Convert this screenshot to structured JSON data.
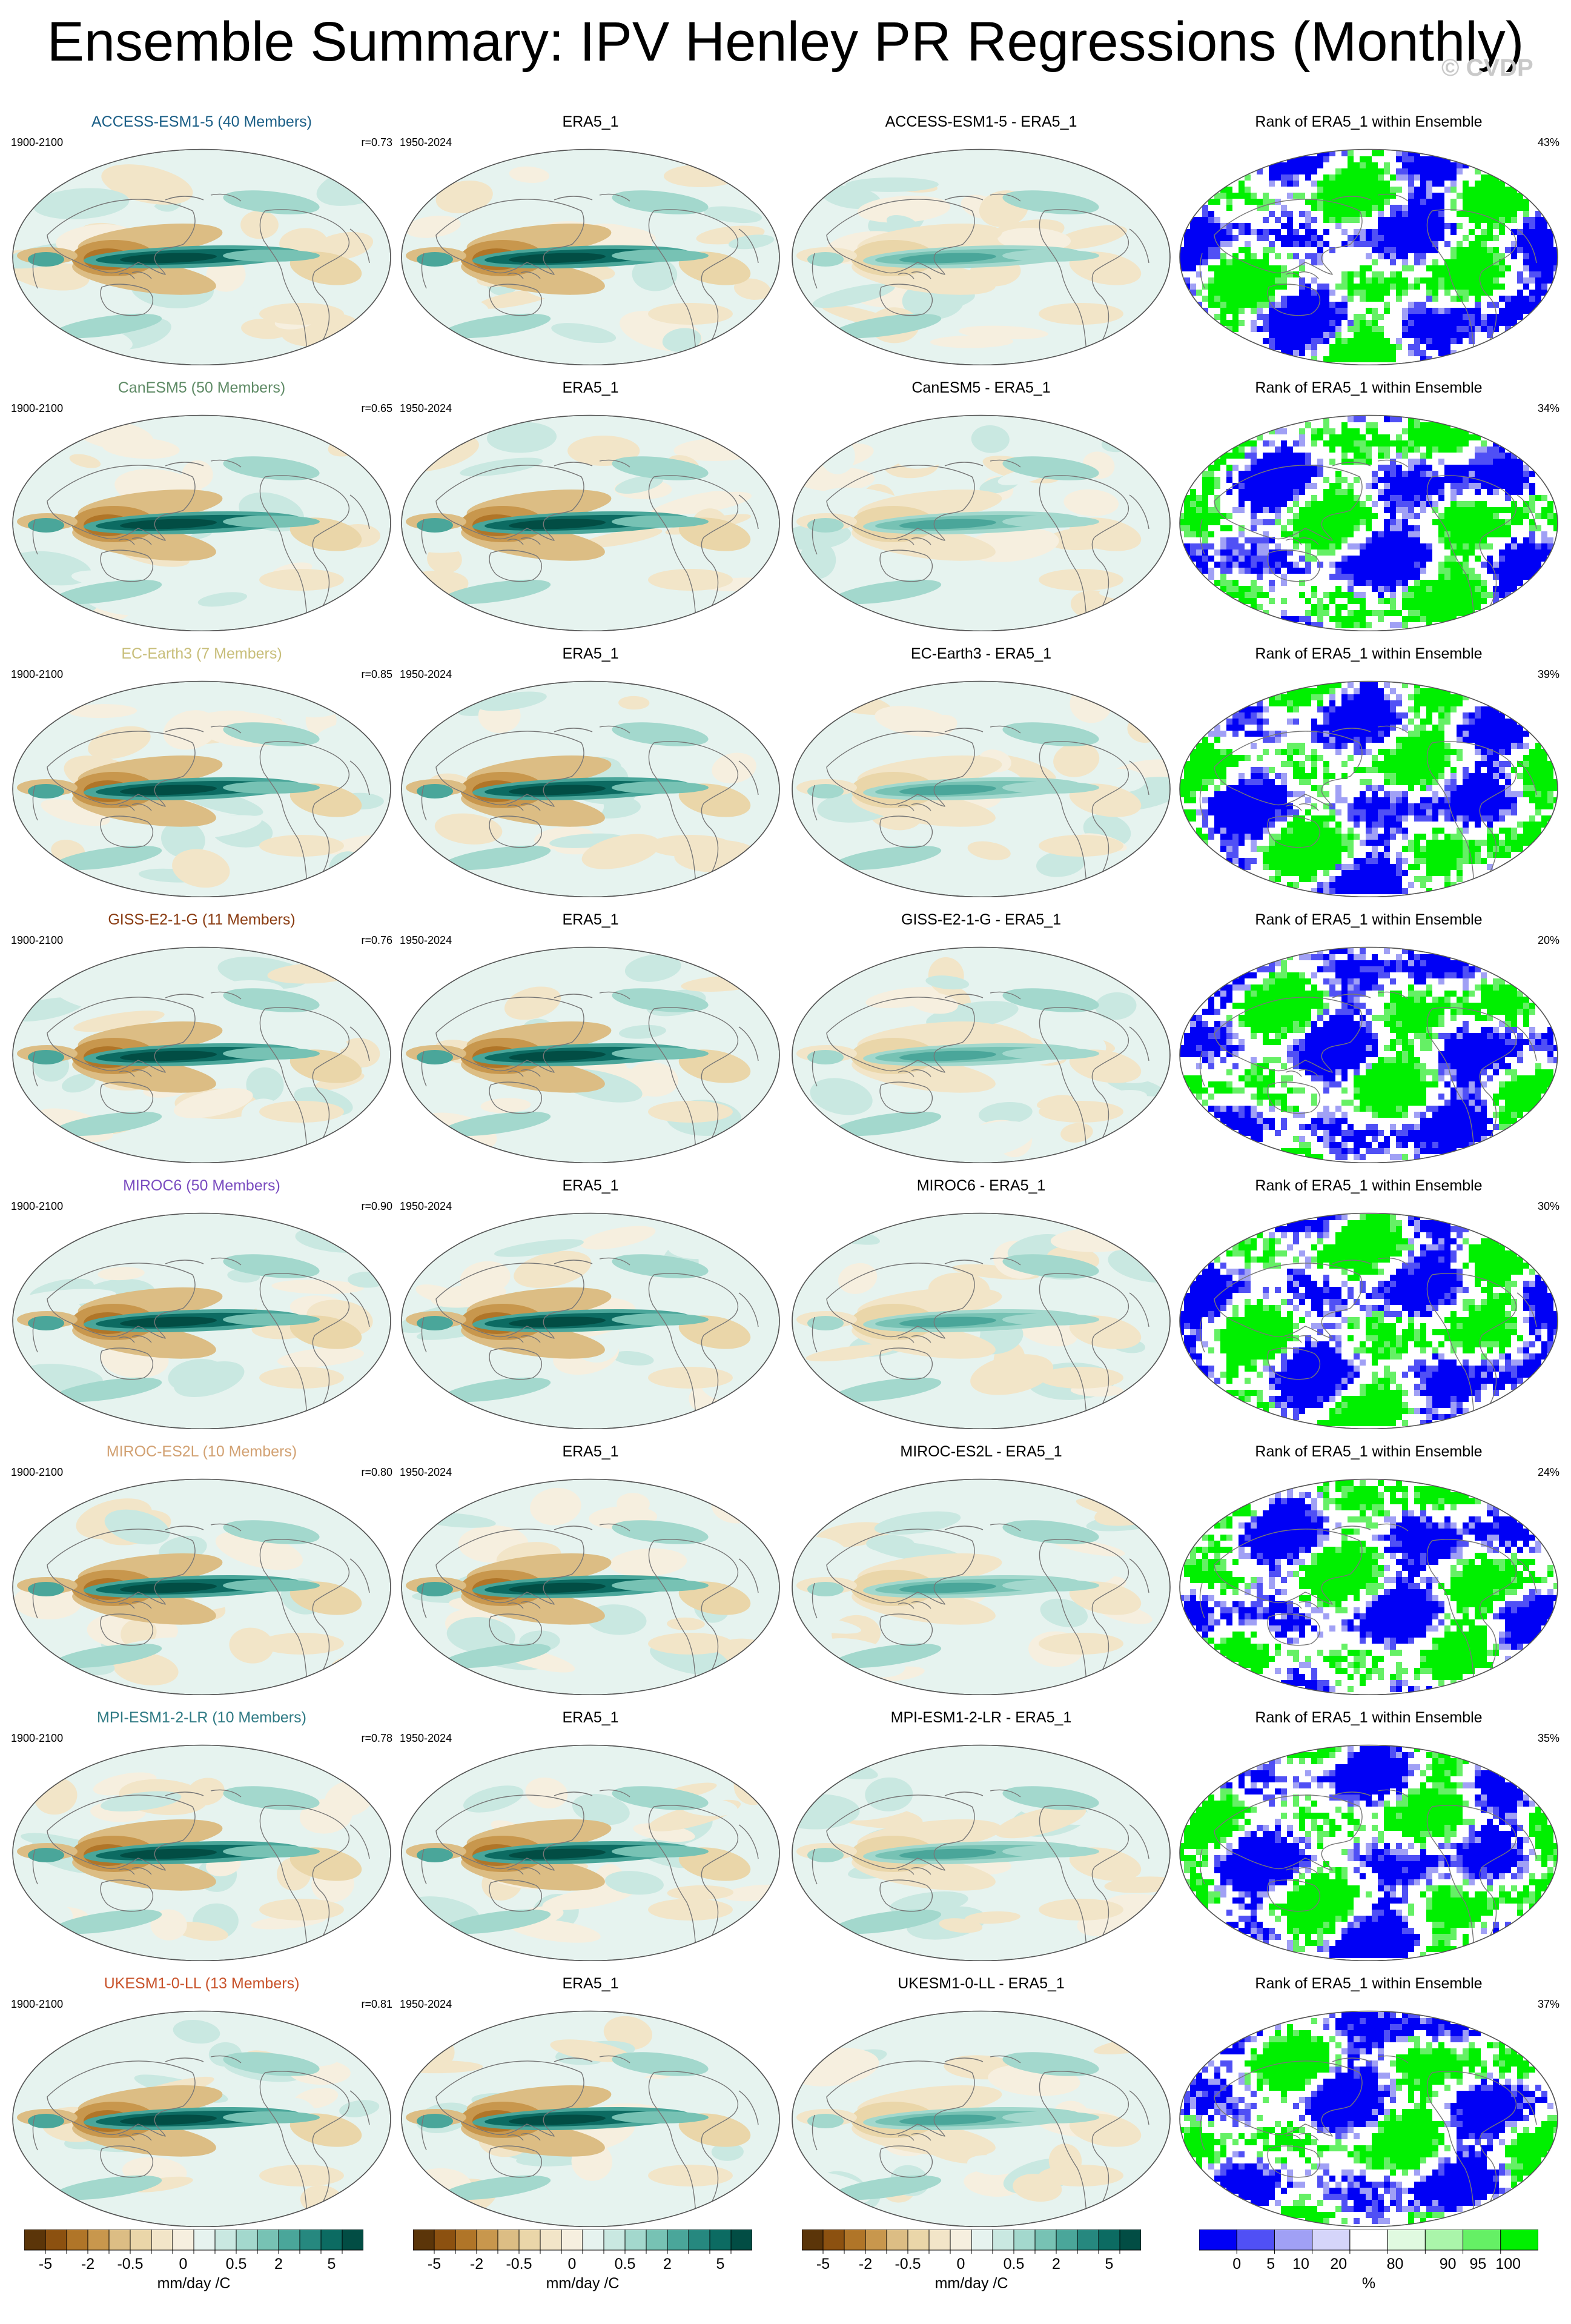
{
  "title": "Ensemble Summary: IPV Henley PR Regressions (Monthly)",
  "watermark": "© CVDP",
  "rank_suffix": "within Ensemble",
  "diverging_colors": [
    "#5b3509",
    "#8c5110",
    "#b07528",
    "#c8974d",
    "#dcbd84",
    "#ead6a9",
    "#f2e5c8",
    "#f6efdf",
    "#e6f3ef",
    "#c9e8e1",
    "#a3d8cd",
    "#77c2b4",
    "#4aa69a",
    "#26887f",
    "#0c6b62",
    "#024d44"
  ],
  "rank_colors": [
    "#0000f5",
    "#5050f5",
    "#a0a0f5",
    "#d5d5fa",
    "#ffffff",
    "#e0fae0",
    "#aaf5aa",
    "#65f065",
    "#00f000"
  ],
  "rows": [
    {
      "model": "ACCESS-ESM1-5 (40 Members)",
      "model_short": "ACCESS-ESM1-5",
      "color": "#1a5e86",
      "period": "1900-2100",
      "r": "r=0.73",
      "obs": "ERA5_1",
      "obs_period": "1950-2024",
      "diff": "ACCESS-ESM1-5 - ERA5_1",
      "rank_title": "Rank of ERA5_1 within Ensemble",
      "rank_pct": "43%"
    },
    {
      "model": "CanESM5 (50 Members)",
      "model_short": "CanESM5",
      "color": "#5e8a65",
      "period": "1900-2100",
      "r": "r=0.65",
      "obs": "ERA5_1",
      "obs_period": "1950-2024",
      "diff": "CanESM5 - ERA5_1",
      "rank_title": "Rank of ERA5_1 within Ensemble",
      "rank_pct": "34%"
    },
    {
      "model": "EC-Earth3 (7 Members)",
      "model_short": "EC-Earth3",
      "color": "#c8be7a",
      "period": "1900-2100",
      "r": "r=0.85",
      "obs": "ERA5_1",
      "obs_period": "1950-2024",
      "diff": "EC-Earth3 - ERA5_1",
      "rank_title": "Rank of ERA5_1 within Ensemble",
      "rank_pct": "39%"
    },
    {
      "model": "GISS-E2-1-G (11 Members)",
      "model_short": "GISS-E2-1-G",
      "color": "#8a3c12",
      "period": "1900-2100",
      "r": "r=0.76",
      "obs": "ERA5_1",
      "obs_period": "1950-2024",
      "diff": "GISS-E2-1-G - ERA5_1",
      "rank_title": "Rank of ERA5_1 within Ensemble",
      "rank_pct": "20%"
    },
    {
      "model": "MIROC6 (50 Members)",
      "model_short": "MIROC6",
      "color": "#7a4cc0",
      "period": "1900-2100",
      "r": "r=0.90",
      "obs": "ERA5_1",
      "obs_period": "1950-2024",
      "diff": "MIROC6 - ERA5_1",
      "rank_title": "Rank of ERA5_1 within Ensemble",
      "rank_pct": "30%"
    },
    {
      "model": "MIROC-ES2L (10 Members)",
      "model_short": "MIROC-ES2L",
      "color": "#d2a172",
      "period": "1900-2100",
      "r": "r=0.80",
      "obs": "ERA5_1",
      "obs_period": "1950-2024",
      "diff": "MIROC-ES2L - ERA5_1",
      "rank_title": "Rank of ERA5_1 within Ensemble",
      "rank_pct": "24%"
    },
    {
      "model": "MPI-ESM1-2-LR (10 Members)",
      "model_short": "MPI-ESM1-2-LR",
      "color": "#2f7a84",
      "period": "1900-2100",
      "r": "r=0.78",
      "obs": "ERA5_1",
      "obs_period": "1950-2024",
      "diff": "MPI-ESM1-2-LR - ERA5_1",
      "rank_title": "Rank of ERA5_1 within Ensemble",
      "rank_pct": "35%"
    },
    {
      "model": "UKESM1-0-LL (13 Members)",
      "model_short": "UKESM1-0-LL",
      "color": "#c8522a",
      "period": "1900-2100",
      "r": "r=0.81",
      "obs": "ERA5_1",
      "obs_period": "1950-2024",
      "diff": "UKESM1-0-LL - ERA5_1",
      "rank_title": "Rank of ERA5_1 within Ensemble",
      "rank_pct": "37%"
    }
  ],
  "colorbar_regression": {
    "ticks": [
      "-5",
      "-2",
      "-0.5",
      "0",
      "0.5",
      "2",
      "5"
    ],
    "unit": "mm/day /C"
  },
  "colorbar_rank": {
    "ticks": [
      "0",
      "5",
      "10",
      "20",
      "80",
      "90",
      "95",
      "100"
    ],
    "unit": "%"
  }
}
